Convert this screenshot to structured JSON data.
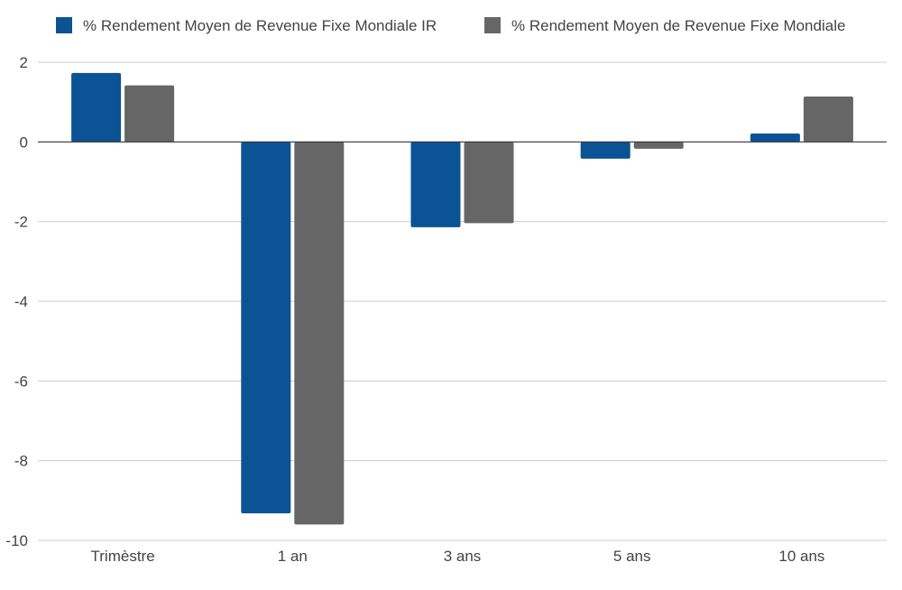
{
  "chart_data": {
    "type": "bar",
    "categories": [
      "Trimèstre",
      "1 an",
      "3 ans",
      "5 ans",
      "10 ans"
    ],
    "series": [
      {
        "name": "% Rendement Moyen de Revenue Fixe Mondiale IR",
        "color": "#0b5394",
        "values": [
          1.73,
          -9.32,
          -2.14,
          -0.42,
          0.21
        ]
      },
      {
        "name": "% Rendement Moyen de Revenue Fixe Mondiale",
        "color": "#666666",
        "values": [
          1.42,
          -9.6,
          -2.04,
          -0.17,
          1.14
        ]
      }
    ],
    "yticks": [
      "2",
      "0",
      "-2",
      "-4",
      "-6",
      "-8",
      "-10"
    ],
    "ylim": [
      -10,
      2
    ],
    "grid": true,
    "legend": "top",
    "title": "",
    "xlabel": "",
    "ylabel": ""
  }
}
